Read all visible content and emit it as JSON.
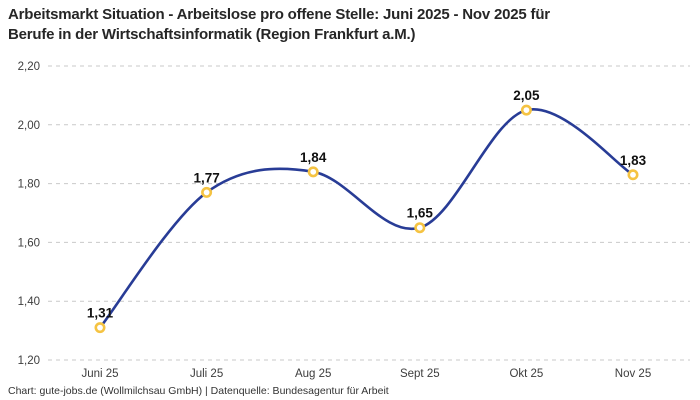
{
  "title": {
    "lines": [
      "Arbeitsmarkt Situation - Arbeitslose pro offene Stelle: Juni 2025 - Nov 2025 für",
      "Berufe in der Wirtschaftsinformatik (Region Frankfurt a.M.)"
    ]
  },
  "footer": {
    "text": "Chart: gute-jobs.de (Wollmilchsau GmbH) | Datenquelle: Bundesagentur für Arbeit"
  },
  "colors": {
    "line": "#283c96",
    "marker": "#f5c342",
    "marker_fill": "#ffffff",
    "grid": "#c9c9c9",
    "axis_text": "#3d3d3d",
    "label_text": "#111111",
    "title_text": "#262626",
    "background": "#ffffff"
  },
  "chart_data": {
    "type": "line",
    "title": "Arbeitsmarkt Situation - Arbeitslose pro offene Stelle: Juni 2025 - Nov 2025 für Berufe in der Wirtschaftsinformatik (Region Frankfurt a.M.)",
    "categories": [
      "Juni 25",
      "Juli 25",
      "Aug 25",
      "Sept 25",
      "Okt 25",
      "Nov 25"
    ],
    "series": [
      {
        "name": "Arbeitslose pro offene Stelle",
        "values": [
          1.31,
          1.77,
          1.84,
          1.65,
          2.05,
          1.83
        ]
      }
    ],
    "point_labels": [
      "1,31",
      "1,77",
      "1,84",
      "1,65",
      "2,05",
      "1,83"
    ],
    "xlabel": "",
    "ylabel": "",
    "ylim": [
      1.2,
      2.2
    ],
    "yticks": [
      {
        "v": 1.2,
        "label": "1,20"
      },
      {
        "v": 1.4,
        "label": "1,40"
      },
      {
        "v": 1.6,
        "label": "1,60"
      },
      {
        "v": 1.8,
        "label": "1,80"
      },
      {
        "v": 2.0,
        "label": "2,00"
      },
      {
        "v": 2.2,
        "label": "2,20"
      }
    ],
    "grid": "horizontal-dashed",
    "legend": "none",
    "line_style": "smooth"
  }
}
